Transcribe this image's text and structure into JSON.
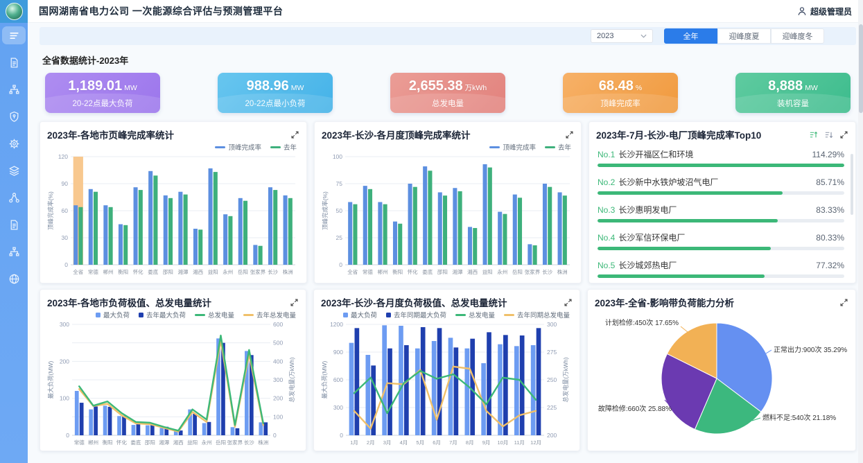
{
  "header": {
    "title": "国网湖南省电力公司 一次能源综合评估与预测管理平台",
    "user": "超级管理员"
  },
  "toolbar": {
    "year": "2023",
    "tabs": [
      {
        "label": "全年",
        "active": true
      },
      {
        "label": "迎峰度夏",
        "active": false
      },
      {
        "label": "迎峰度冬",
        "active": false
      }
    ]
  },
  "stats": {
    "title": "全省数据统计-2023年",
    "cards": [
      {
        "value": "1,189.01",
        "unit": "MW",
        "label": "20-22点最大负荷",
        "color_from": "#ae8df1",
        "color_to": "#9c76ec"
      },
      {
        "value": "988.96",
        "unit": "MW",
        "label": "20-22点最小负荷",
        "color_from": "#68c6ef",
        "color_to": "#44b2e8"
      },
      {
        "value": "2,655.38",
        "unit": "万kWh",
        "label": "总发电量",
        "color_from": "#eb9d96",
        "color_to": "#e2827d"
      },
      {
        "value": "68.48",
        "unit": "%",
        "label": "顶峰完成率",
        "color_from": "#f7b168",
        "color_to": "#f09a3e"
      },
      {
        "value": "8,888",
        "unit": "MW",
        "label": "装机容量",
        "color_from": "#5fcba0",
        "color_to": "#3dbc8d"
      }
    ]
  },
  "chart_data": [
    {
      "id": "city-completion",
      "type": "bar",
      "title": "2023年-各地市页峰完成率统计",
      "ylabel": "顶峰完成率(%)",
      "ylim": [
        0,
        120
      ],
      "yticks": [
        0,
        30,
        60,
        90,
        120
      ],
      "highlight_index": 0,
      "highlight_color": "#f8c88f",
      "categories": [
        "全省",
        "常德",
        "郴州",
        "衡阳",
        "怀化",
        "娄底",
        "邵阳",
        "湘潭",
        "湘西",
        "益阳",
        "永州",
        "岳阳",
        "张家界",
        "长沙",
        "株洲"
      ],
      "series": [
        {
          "name": "顶峰完成率",
          "color": "#5c8fe0",
          "values": [
            66,
            84,
            66,
            45,
            86,
            104,
            77,
            81,
            40,
            107,
            56,
            74,
            22,
            86,
            77
          ]
        },
        {
          "name": "去年",
          "color": "#3eb07c",
          "values": [
            64,
            81,
            64,
            44,
            83,
            99,
            74,
            78,
            39,
            103,
            54,
            71,
            21,
            83,
            74
          ]
        }
      ]
    },
    {
      "id": "monthly-completion",
      "type": "bar",
      "title": "2023年-长沙-各月度顶峰完成率统计",
      "ylabel": "顶峰完成率(%)",
      "ylim": [
        0,
        100
      ],
      "yticks": [
        0,
        25,
        50,
        75,
        100
      ],
      "highlight_index": null,
      "highlight_color": null,
      "categories": [
        "全省",
        "常德",
        "郴州",
        "衡阳",
        "怀化",
        "娄底",
        "邵阳",
        "湘潭",
        "湘西",
        "益阳",
        "永州",
        "岳阳",
        "张家界",
        "长沙",
        "株洲"
      ],
      "series": [
        {
          "name": "顶峰完成率",
          "color": "#5c8fe0",
          "values": [
            58,
            73,
            58,
            40,
            75,
            91,
            67,
            71,
            35,
            93,
            49,
            65,
            19,
            75,
            67
          ]
        },
        {
          "name": "去年",
          "color": "#3eb07c",
          "values": [
            56,
            70,
            56,
            38,
            72,
            87,
            64,
            68,
            34,
            90,
            47,
            62,
            18,
            72,
            64
          ]
        }
      ]
    },
    {
      "id": "plant-top10",
      "type": "table",
      "title": "2023年-7月-长沙-电厂顶峰完成率Top10",
      "items": [
        {
          "rank": "No.1",
          "name": "长沙开福区仁和环境",
          "value": "114.29%",
          "pct": 114.29
        },
        {
          "rank": "No.2",
          "name": "长沙新中水铁炉坡沼气电厂",
          "value": "85.71%",
          "pct": 85.71
        },
        {
          "rank": "No.3",
          "name": "长沙惠明发电厂",
          "value": "83.33%",
          "pct": 83.33
        },
        {
          "rank": "No.4",
          "name": "长沙军信环保电厂",
          "value": "80.33%",
          "pct": 80.33
        },
        {
          "rank": "No.5",
          "name": "长沙城郊热电厂",
          "value": "77.32%",
          "pct": 77.32
        }
      ]
    },
    {
      "id": "city-load",
      "type": "bar+line",
      "title": "2023年-各地市负荷极值、总发电量统计",
      "left": {
        "label": "最大负荷(MW)",
        "min": 0,
        "max": 300,
        "ticks": [
          0,
          100,
          200,
          300
        ]
      },
      "right": {
        "label": "总发电量(万kWh)",
        "min": 0,
        "max": 600,
        "ticks": [
          0,
          100,
          200,
          300,
          400,
          500,
          600
        ]
      },
      "categories": [
        "常德",
        "郴州",
        "衡阳",
        "怀化",
        "娄底",
        "邵阳",
        "湘潭",
        "湘西",
        "益阳",
        "永州",
        "岳阳",
        "张家界",
        "长沙",
        "株洲"
      ],
      "bars": [
        {
          "name": "最大负荷",
          "color": "#6d9cf2",
          "values": [
            120,
            70,
            80,
            52,
            28,
            27,
            20,
            12,
            70,
            33,
            262,
            22,
            228,
            35
          ]
        },
        {
          "name": "去年最大负荷",
          "color": "#1f3fae",
          "values": [
            88,
            78,
            77,
            53,
            31,
            29,
            23,
            13,
            58,
            36,
            250,
            19,
            217,
            35
          ]
        }
      ],
      "lines": [
        {
          "name": "总发电量",
          "color": "#3cb878",
          "values": [
            265,
            160,
            183,
            120,
            72,
            68,
            45,
            25,
            140,
            85,
            540,
            55,
            462,
            65
          ]
        },
        {
          "name": "去年总发电量",
          "color": "#f0c06a",
          "values": [
            250,
            158,
            170,
            108,
            64,
            60,
            40,
            20,
            126,
            72,
            512,
            45,
            438,
            55
          ]
        }
      ]
    },
    {
      "id": "monthly-load",
      "type": "bar+line",
      "title": "2023年-长沙-各月度负荷极值、总发电量统计",
      "left": {
        "label": "最大负荷(MW)",
        "min": 0,
        "max": 1200,
        "ticks": [
          0,
          300,
          600,
          900,
          1200
        ]
      },
      "right": {
        "label": "总发电量(万kWh)",
        "min": 200,
        "max": 300,
        "ticks": [
          200,
          225,
          250,
          275,
          300
        ]
      },
      "categories": [
        "1月",
        "2月",
        "3月",
        "4月",
        "5月",
        "6月",
        "7月",
        "8月",
        "9月",
        "10月",
        "11月",
        "12月"
      ],
      "bars": [
        {
          "name": "最大负荷",
          "color": "#6d9cf2",
          "values": [
            1000,
            870,
            1190,
            1185,
            940,
            1020,
            1055,
            940,
            780,
            985,
            965,
            975
          ]
        },
        {
          "name": "去年同期最大负荷",
          "color": "#1f3fae",
          "values": [
            1160,
            755,
            940,
            975,
            1170,
            1160,
            950,
            1045,
            1115,
            1085,
            1080,
            1160
          ]
        }
      ],
      "lines": [
        {
          "name": "总发电量",
          "color": "#3cb878",
          "values": [
            238,
            252,
            220,
            247,
            258,
            251,
            255,
            243,
            228,
            252,
            250,
            232
          ]
        },
        {
          "name": "去年同期总发电量",
          "color": "#f0c06a",
          "values": [
            222,
            206,
            247,
            246,
            259,
            214,
            262,
            260,
            222,
            208,
            218,
            222
          ]
        }
      ]
    },
    {
      "id": "impact-pie",
      "type": "pie",
      "title": "2023年-全省-影响带负荷能力分析",
      "slices": [
        {
          "name": "正常出力",
          "count": "900次",
          "pct": 35.29,
          "color": "#6590f1"
        },
        {
          "name": "燃料不足",
          "count": "540次",
          "pct": 21.18,
          "color": "#3cb87e"
        },
        {
          "name": "故障检修",
          "count": "660次",
          "pct": 25.88,
          "color": "#6b3ab1"
        },
        {
          "name": "计划检修",
          "count": "450次",
          "pct": 17.65,
          "color": "#f2b155"
        }
      ]
    }
  ]
}
